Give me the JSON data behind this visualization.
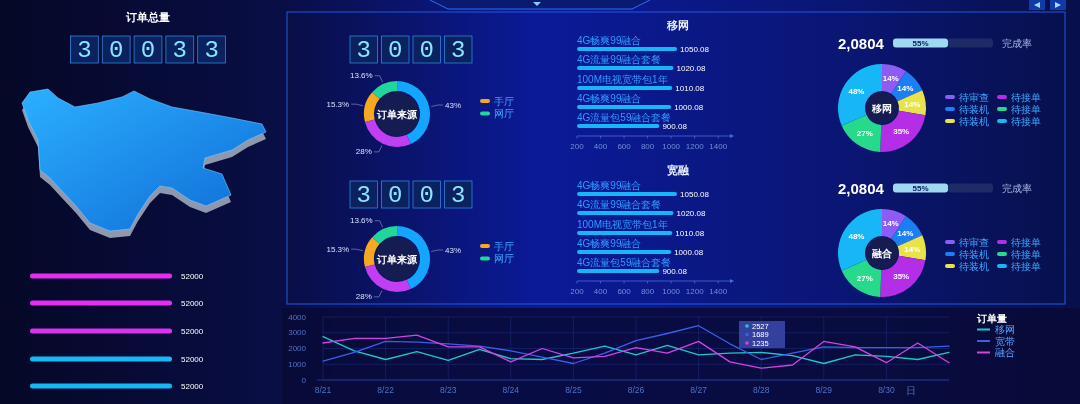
{
  "chart_data": [
    {
      "type": "other",
      "title": "订单总量",
      "annotations": [
        "30033"
      ]
    },
    {
      "type": "bar",
      "orientation": "horizontal",
      "categories": [
        null,
        null,
        null,
        null,
        null
      ],
      "colors": [
        "#e62df0",
        "#e62df0",
        "#d933f0",
        "#14b8f5",
        "#14b8f5"
      ],
      "values": [
        52000,
        52000,
        52000,
        52000,
        52000
      ],
      "data_labels": true
    },
    {
      "type": "other",
      "annotations": [
        "3003"
      ]
    },
    {
      "type": "donut",
      "title": "订单来源",
      "categories": [
        "手厅",
        "网厅",
        null,
        null
      ],
      "values": [
        15.3,
        13.6,
        43,
        28
      ],
      "colors": [
        "#f6a821",
        "#20d69a",
        "#14a6ff",
        "#c03ff0"
      ],
      "value_labels": [
        "15.3%",
        "13.6%",
        "43%",
        "28%"
      ],
      "legend": "right"
    },
    {
      "type": "bar",
      "orientation": "horizontal",
      "title": "移网",
      "categories": [
        "4G畅爽99融合",
        "4G流量99融合套餐",
        "100M电视宽带包1年",
        "4G畅爽99融合",
        "4G流量包59融合套餐"
      ],
      "values": [
        1050.08,
        1020.08,
        1010.08,
        1000.08,
        900.08
      ],
      "color": "#16b6f7",
      "xlim": [
        200,
        1500
      ],
      "xticks": [
        200,
        400,
        600,
        800,
        1000,
        1200,
        1400
      ],
      "data_labels": true
    },
    {
      "type": "other",
      "annotations": [
        "2,0804"
      ]
    },
    {
      "type": "bar",
      "orientation": "horizontal",
      "stacked": true,
      "categories": [
        null
      ],
      "series": [
        {
          "color": "#9fd8f0",
          "values": [
            55
          ],
          "value_labels": [
            "55%"
          ]
        },
        {
          "color": "#1d2b66",
          "values": [
            45
          ]
        }
      ],
      "annotations": [
        "完成率"
      ]
    },
    {
      "type": "donut",
      "title": "移网",
      "categories": [
        "待审查",
        "待装机",
        "待装机",
        "待接单",
        "待接单",
        "待接单"
      ],
      "values": [
        14,
        14,
        14,
        35,
        27,
        48
      ],
      "colors": [
        "#8c5cf5",
        "#1b7ef2",
        "#e9e34a",
        "#b42ee8",
        "#27d98a",
        "#17b6f6"
      ],
      "value_labels": [
        "14%",
        "14%",
        "14%",
        "35%",
        "27%",
        "48%"
      ],
      "legend": "right"
    },
    {
      "type": "other",
      "annotations": [
        "3003"
      ]
    },
    {
      "type": "donut",
      "title": "订单来源",
      "categories": [
        "手厅",
        "网厅",
        null,
        null
      ],
      "values": [
        15.3,
        13.6,
        43,
        28
      ],
      "colors": [
        "#f6a821",
        "#20d69a",
        "#14a6ff",
        "#c03ff0"
      ],
      "value_labels": [
        "15.3%",
        "13.6%",
        "43%",
        "28%"
      ],
      "legend": "right"
    },
    {
      "type": "bar",
      "orientation": "horizontal",
      "title": "宽融",
      "categories": [
        "4G畅爽99融合",
        "4G流量99融合套餐",
        "100M电视宽带包1年",
        "4G畅爽99融合",
        "4G流量包59融合套餐"
      ],
      "values": [
        1050.08,
        1020.08,
        1010.08,
        1000.08,
        900.08
      ],
      "color": "#16b6f7",
      "xlim": [
        200,
        1500
      ],
      "xticks": [
        200,
        400,
        600,
        800,
        1000,
        1200,
        1400
      ],
      "data_labels": true
    },
    {
      "type": "other",
      "annotations": [
        "2,0804"
      ]
    },
    {
      "type": "bar",
      "orientation": "horizontal",
      "stacked": true,
      "categories": [
        null
      ],
      "series": [
        {
          "color": "#9fd8f0",
          "values": [
            55
          ],
          "value_labels": [
            "55%"
          ]
        },
        {
          "color": "#1d2b66",
          "values": [
            45
          ]
        }
      ],
      "annotations": [
        "完成率"
      ]
    },
    {
      "type": "donut",
      "title": "融合",
      "categories": [
        "待审查",
        "待装机",
        "待装机",
        "待接单",
        "待接单",
        "待接单"
      ],
      "values": [
        14,
        14,
        14,
        35,
        27,
        48
      ],
      "colors": [
        "#8c5cf5",
        "#1b7ef2",
        "#e9e34a",
        "#b42ee8",
        "#27d98a",
        "#17b6f6"
      ],
      "value_labels": [
        "14%",
        "14%",
        "14%",
        "35%",
        "27%",
        "48%"
      ],
      "legend": "right"
    },
    {
      "type": "line",
      "categories": [
        "8/21",
        null,
        "8/22",
        null,
        "8/23",
        null,
        "8/24",
        null,
        "8/25",
        null,
        "8/26",
        null,
        "8/27",
        null,
        "8/28",
        null,
        "8/29",
        null,
        "8/30",
        null,
        null
      ],
      "xlabel": "日",
      "ylim": [
        0,
        4000
      ],
      "yticks": [
        0,
        1000,
        2000,
        3000,
        4000
      ],
      "grid": true,
      "legend": "right",
      "legend_title": "订单量",
      "series": [
        {
          "name": "移网",
          "color": "#1fc9c9",
          "values": [
            2750,
            1850,
            1300,
            1800,
            1250,
            1950,
            1350,
            1300,
            1700,
            2150,
            1600,
            2200,
            1600,
            1700,
            1750,
            1550,
            1050,
            1600,
            1500,
            1300,
            1750
          ]
        },
        {
          "name": "宽带",
          "color": "#3d5fe6",
          "values": [
            1200,
            1750,
            2450,
            2400,
            2300,
            2150,
            1850,
            1450,
            1050,
            1700,
            2500,
            2950,
            3450,
            2300,
            1300,
            1700,
            2100,
            2050,
            2050,
            2050,
            2150
          ]
        },
        {
          "name": "融合",
          "color": "#d442e2",
          "values": [
            2350,
            2650,
            2650,
            2850,
            2100,
            2100,
            1150,
            2000,
            1400,
            1500,
            2050,
            1700,
            2450,
            1150,
            750,
            950,
            2450,
            2100,
            1100,
            2350,
            1100
          ]
        }
      ],
      "annotations": [
        "2527",
        "1689",
        "1235"
      ]
    }
  ]
}
